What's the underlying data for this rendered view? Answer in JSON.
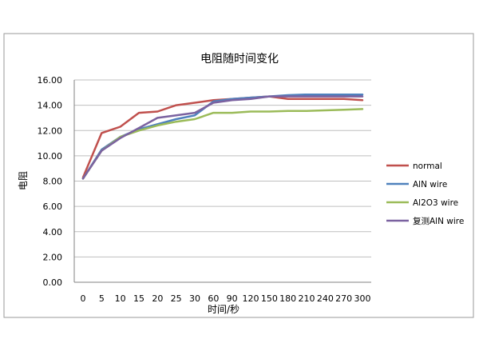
{
  "chart_data": {
    "type": "line",
    "title": "电阻随时间变化",
    "xlabel": "时间/秒",
    "ylabel": "电阻",
    "categories": [
      "0",
      "5",
      "10",
      "15",
      "20",
      "25",
      "30",
      "60",
      "90",
      "120",
      "150",
      "180",
      "210",
      "240",
      "270",
      "300"
    ],
    "ylim": [
      0,
      16
    ],
    "yticks": [
      "0.00",
      "2.00",
      "4.00",
      "6.00",
      "8.00",
      "10.00",
      "12.00",
      "14.00",
      "16.00"
    ],
    "grid": true,
    "legend": "right",
    "series": [
      {
        "name": "normal",
        "color": "#c0504d",
        "values": [
          8.3,
          11.8,
          12.3,
          13.4,
          13.5,
          14.0,
          14.2,
          14.4,
          14.5,
          14.6,
          14.7,
          14.5,
          14.5,
          14.5,
          14.5,
          14.4
        ]
      },
      {
        "name": "AlN wire",
        "color": "#4f81bd",
        "values": [
          8.2,
          10.5,
          11.5,
          12.1,
          12.5,
          12.9,
          13.2,
          14.3,
          14.5,
          14.6,
          14.7,
          14.8,
          14.85,
          14.85,
          14.85,
          14.85
        ]
      },
      {
        "name": "Al2O3 wire",
        "color": "#9bbb59",
        "values": [
          8.2,
          10.4,
          11.5,
          12.0,
          12.4,
          12.7,
          12.9,
          13.4,
          13.4,
          13.5,
          13.5,
          13.55,
          13.55,
          13.6,
          13.65,
          13.7
        ]
      },
      {
        "name": "复测AlN wire",
        "color": "#7b62a0",
        "values": [
          8.2,
          10.4,
          11.4,
          12.2,
          13.0,
          13.2,
          13.4,
          14.2,
          14.4,
          14.5,
          14.7,
          14.7,
          14.7,
          14.7,
          14.7,
          14.7
        ]
      }
    ]
  }
}
